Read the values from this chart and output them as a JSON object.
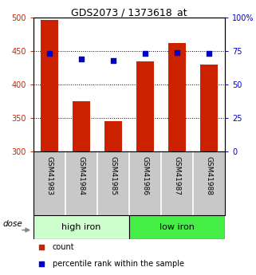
{
  "title": "GDS2073 / 1373618_at",
  "samples": [
    "GSM41983",
    "GSM41984",
    "GSM41985",
    "GSM41986",
    "GSM41987",
    "GSM41988"
  ],
  "bar_values": [
    497,
    375,
    345,
    435,
    462,
    430
  ],
  "bar_bottom": 300,
  "bar_color": "#cc2200",
  "blue_values": [
    73,
    69,
    68,
    73,
    74,
    73
  ],
  "blue_color": "#0000cc",
  "ylim_left": [
    300,
    500
  ],
  "ylim_right": [
    0,
    100
  ],
  "yticks_left": [
    300,
    350,
    400,
    450,
    500
  ],
  "yticks_right": [
    0,
    25,
    50,
    75,
    100
  ],
  "ytick_labels_left": [
    "300",
    "350",
    "400",
    "450",
    "500"
  ],
  "ytick_labels_right": [
    "0",
    "25",
    "50",
    "75",
    "100%"
  ],
  "groups": [
    {
      "label": "high iron",
      "indices": [
        0,
        1,
        2
      ],
      "color": "#ccffcc"
    },
    {
      "label": "low iron",
      "indices": [
        3,
        4,
        5
      ],
      "color": "#44ee44"
    }
  ],
  "dose_label": "dose",
  "legend_items": [
    {
      "label": "count",
      "color": "#cc2200"
    },
    {
      "label": "percentile rank within the sample",
      "color": "#0000cc"
    }
  ],
  "sample_box_color": "#c8c8c8",
  "background_color": "#ffffff"
}
